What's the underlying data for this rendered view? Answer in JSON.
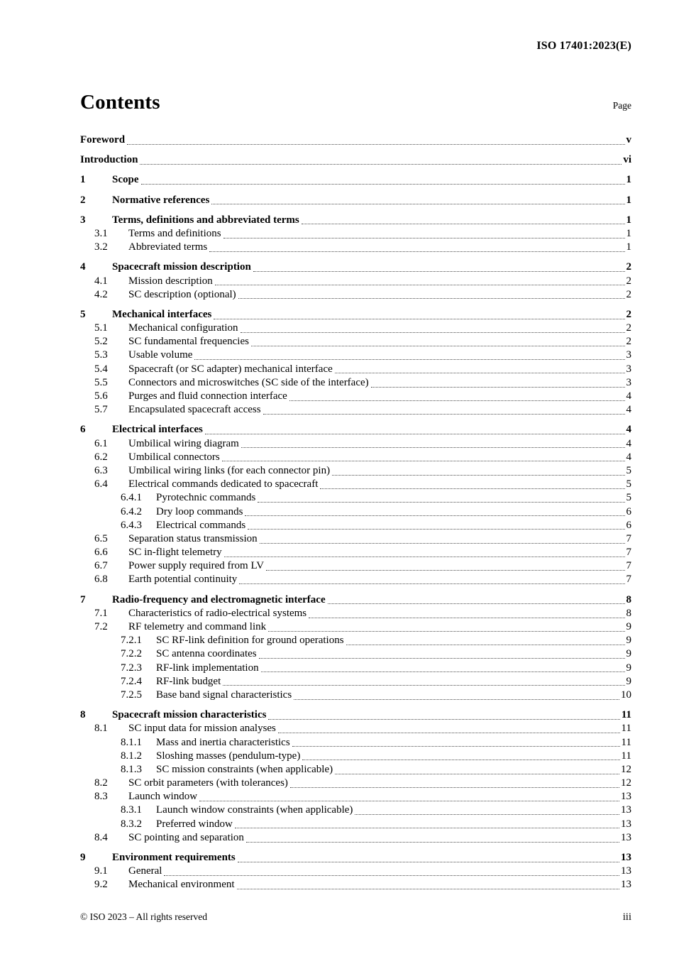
{
  "header": {
    "doc_code": "ISO 17401:2023(E)"
  },
  "contents_heading": {
    "title": "Contents",
    "page_label": "Page"
  },
  "toc": [
    {
      "level": 0,
      "num": "",
      "title": "Foreword",
      "page": "v",
      "bold": true
    },
    {
      "level": 0,
      "num": "",
      "title": "Introduction",
      "page": "vi",
      "bold": true
    },
    {
      "level": 1,
      "num": "1",
      "title": "Scope",
      "page": "1",
      "bold": true
    },
    {
      "level": 1,
      "num": "2",
      "title": "Normative references",
      "page": "1",
      "bold": true
    },
    {
      "level": 1,
      "num": "3",
      "title": "Terms, definitions and abbreviated terms",
      "page": "1",
      "bold": true
    },
    {
      "level": 2,
      "num": "3.1",
      "title": "Terms and definitions",
      "page": "1",
      "bold": false
    },
    {
      "level": 2,
      "num": "3.2",
      "title": "Abbreviated terms",
      "page": "1",
      "bold": false
    },
    {
      "level": 1,
      "num": "4",
      "title": "Spacecraft mission description",
      "page": "2",
      "bold": true
    },
    {
      "level": 2,
      "num": "4.1",
      "title": "Mission description",
      "page": "2",
      "bold": false
    },
    {
      "level": 2,
      "num": "4.2",
      "title": "SC description (optional)",
      "page": "2",
      "bold": false
    },
    {
      "level": 1,
      "num": "5",
      "title": "Mechanical interfaces",
      "page": "2",
      "bold": true
    },
    {
      "level": 2,
      "num": "5.1",
      "title": "Mechanical configuration",
      "page": "2",
      "bold": false
    },
    {
      "level": 2,
      "num": "5.2",
      "title": "SC fundamental frequencies",
      "page": "2",
      "bold": false
    },
    {
      "level": 2,
      "num": "5.3",
      "title": "Usable volume",
      "page": "3",
      "bold": false
    },
    {
      "level": 2,
      "num": "5.4",
      "title": "Spacecraft (or SC adapter) mechanical interface",
      "page": "3",
      "bold": false
    },
    {
      "level": 2,
      "num": "5.5",
      "title": "Connectors and microswitches (SC side of the interface)",
      "page": "3",
      "bold": false
    },
    {
      "level": 2,
      "num": "5.6",
      "title": "Purges and fluid connection interface",
      "page": "4",
      "bold": false
    },
    {
      "level": 2,
      "num": "5.7",
      "title": "Encapsulated spacecraft access",
      "page": "4",
      "bold": false
    },
    {
      "level": 1,
      "num": "6",
      "title": "Electrical interfaces",
      "page": "4",
      "bold": true
    },
    {
      "level": 2,
      "num": "6.1",
      "title": "Umbilical wiring diagram",
      "page": "4",
      "bold": false
    },
    {
      "level": 2,
      "num": "6.2",
      "title": "Umbilical connectors",
      "page": "4",
      "bold": false
    },
    {
      "level": 2,
      "num": "6.3",
      "title": "Umbilical wiring links (for each connector pin)",
      "page": "5",
      "bold": false
    },
    {
      "level": 2,
      "num": "6.4",
      "title": "Electrical commands dedicated to spacecraft",
      "page": "5",
      "bold": false
    },
    {
      "level": 3,
      "num": "6.4.1",
      "title": "Pyrotechnic commands",
      "page": "5",
      "bold": false
    },
    {
      "level": 3,
      "num": "6.4.2",
      "title": "Dry loop commands",
      "page": "6",
      "bold": false
    },
    {
      "level": 3,
      "num": "6.4.3",
      "title": "Electrical commands",
      "page": "6",
      "bold": false
    },
    {
      "level": 2,
      "num": "6.5",
      "title": "Separation status transmission",
      "page": "7",
      "bold": false
    },
    {
      "level": 2,
      "num": "6.6",
      "title": "SC in-flight telemetry",
      "page": "7",
      "bold": false
    },
    {
      "level": 2,
      "num": "6.7",
      "title": "Power supply required from LV",
      "page": "7",
      "bold": false
    },
    {
      "level": 2,
      "num": "6.8",
      "title": "Earth potential continuity",
      "page": "7",
      "bold": false
    },
    {
      "level": 1,
      "num": "7",
      "title": "Radio-frequency and electromagnetic interface",
      "page": "8",
      "bold": true
    },
    {
      "level": 2,
      "num": "7.1",
      "title": "Characteristics of radio-electrical systems",
      "page": "8",
      "bold": false
    },
    {
      "level": 2,
      "num": "7.2",
      "title": "RF telemetry and command link",
      "page": "9",
      "bold": false
    },
    {
      "level": 3,
      "num": "7.2.1",
      "title": "SC RF-link definition for ground operations",
      "page": "9",
      "bold": false
    },
    {
      "level": 3,
      "num": "7.2.2",
      "title": "SC antenna coordinates",
      "page": "9",
      "bold": false
    },
    {
      "level": 3,
      "num": "7.2.3",
      "title": "RF-link implementation",
      "page": "9",
      "bold": false
    },
    {
      "level": 3,
      "num": "7.2.4",
      "title": "RF-link budget",
      "page": "9",
      "bold": false
    },
    {
      "level": 3,
      "num": "7.2.5",
      "title": "Base band signal characteristics",
      "page": "10",
      "bold": false
    },
    {
      "level": 1,
      "num": "8",
      "title": "Spacecraft mission characteristics",
      "page": "11",
      "bold": true
    },
    {
      "level": 2,
      "num": "8.1",
      "title": "SC input data for mission analyses",
      "page": "11",
      "bold": false
    },
    {
      "level": 3,
      "num": "8.1.1",
      "title": "Mass and inertia characteristics",
      "page": "11",
      "bold": false
    },
    {
      "level": 3,
      "num": "8.1.2",
      "title": "Sloshing masses (pendulum-type)",
      "page": "11",
      "bold": false
    },
    {
      "level": 3,
      "num": "8.1.3",
      "title": "SC mission constraints (when applicable)",
      "page": "12",
      "bold": false
    },
    {
      "level": 2,
      "num": "8.2",
      "title": "SC orbit parameters (with tolerances)",
      "page": "12",
      "bold": false
    },
    {
      "level": 2,
      "num": "8.3",
      "title": "Launch window",
      "page": "13",
      "bold": false
    },
    {
      "level": 3,
      "num": "8.3.1",
      "title": "Launch window constraints (when applicable)",
      "page": "13",
      "bold": false
    },
    {
      "level": 3,
      "num": "8.3.2",
      "title": "Preferred window",
      "page": "13",
      "bold": false
    },
    {
      "level": 2,
      "num": "8.4",
      "title": "SC pointing and separation",
      "page": "13",
      "bold": false
    },
    {
      "level": 1,
      "num": "9",
      "title": "Environment requirements",
      "page": "13",
      "bold": true
    },
    {
      "level": 2,
      "num": "9.1",
      "title": "General",
      "page": "13",
      "bold": false
    },
    {
      "level": 2,
      "num": "9.2",
      "title": "Mechanical environment",
      "page": "13",
      "bold": false
    }
  ],
  "footer": {
    "copyright": "© ISO 2023 – All rights reserved",
    "page_number": "iii"
  }
}
